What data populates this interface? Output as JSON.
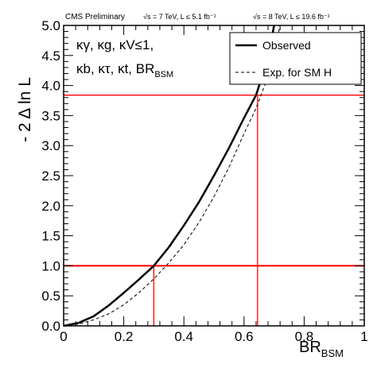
{
  "chart_data": {
    "type": "line",
    "header": {
      "experiment": "CMS Preliminary",
      "lumi_7": "√s = 7 TeV, L ≤ 5.1 fb⁻¹",
      "lumi_8": "√s = 8 TeV, L ≤ 19.6 fb⁻¹"
    },
    "annotation": {
      "line1": "κγ, κg, κV≤1,",
      "line2": "κb, κτ, κt, BR",
      "line2_sub": "BSM"
    },
    "xlabel": "BR",
    "xlabel_sub": "BSM",
    "ylabel": "- 2 Δ ln L",
    "xlim": [
      0,
      1
    ],
    "ylim": [
      0,
      5
    ],
    "xticks": [
      "0",
      "0.2",
      "0.4",
      "0.6",
      "0.8",
      "1"
    ],
    "yticks": [
      "0.0",
      "0.5",
      "1.0",
      "1.5",
      "2.0",
      "2.5",
      "3.0",
      "3.5",
      "4.0",
      "4.5",
      "5.0"
    ],
    "legend": {
      "position": "top-right"
    },
    "series": [
      {
        "name": "Observed",
        "style": "solid",
        "color": "#000000",
        "x": [
          0.0,
          0.05,
          0.1,
          0.15,
          0.2,
          0.25,
          0.3,
          0.35,
          0.4,
          0.45,
          0.5,
          0.55,
          0.6,
          0.64,
          0.68,
          0.7
        ],
        "y": [
          0.0,
          0.05,
          0.16,
          0.34,
          0.55,
          0.77,
          1.0,
          1.31,
          1.67,
          2.06,
          2.5,
          2.96,
          3.46,
          3.84,
          4.45,
          5.0
        ]
      },
      {
        "name": "Exp. for SM H",
        "style": "dashed",
        "color": "#000000",
        "x": [
          0.0,
          0.05,
          0.1,
          0.15,
          0.2,
          0.25,
          0.3,
          0.35,
          0.4,
          0.45,
          0.5,
          0.55,
          0.6,
          0.64,
          0.68,
          0.72
        ],
        "y": [
          0.0,
          0.03,
          0.1,
          0.2,
          0.35,
          0.55,
          0.78,
          1.05,
          1.35,
          1.72,
          2.15,
          2.64,
          3.2,
          3.62,
          4.15,
          5.0
        ]
      }
    ],
    "reference_lines": {
      "color": "#ff0000",
      "horizontal": [
        1.0,
        3.84
      ],
      "vertical": [
        {
          "x": 0.3,
          "y_top": 1.0
        },
        {
          "x": 0.645,
          "y_top": 3.84
        }
      ]
    }
  }
}
